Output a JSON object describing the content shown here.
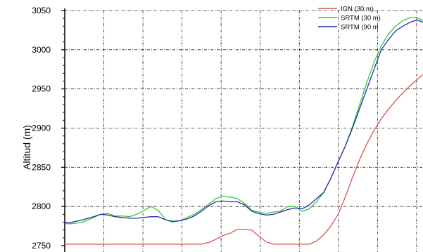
{
  "chart_data": {
    "type": "line",
    "title": "",
    "xlabel": "",
    "ylabel": "Altitud (m)",
    "ylim": [
      2750,
      3050
    ],
    "yticks": [
      2750,
      2800,
      2850,
      2900,
      2950,
      3000,
      3050
    ],
    "grid": true,
    "legend_position": "top-right",
    "series": [
      {
        "name": "IGN (30 m)",
        "color": "#d9534f",
        "points": [
          [
            0,
            2752
          ],
          [
            2,
            2752
          ],
          [
            5,
            2752
          ],
          [
            10,
            2752
          ],
          [
            15,
            2752
          ],
          [
            20,
            2752
          ],
          [
            25,
            2752
          ],
          [
            30,
            2752
          ],
          [
            35,
            2752
          ],
          [
            38,
            2752
          ],
          [
            40,
            2754
          ],
          [
            42,
            2758
          ],
          [
            44,
            2763
          ],
          [
            46,
            2766
          ],
          [
            48,
            2771
          ],
          [
            50,
            2771
          ],
          [
            52,
            2770
          ],
          [
            54,
            2762
          ],
          [
            56,
            2755
          ],
          [
            58,
            2752
          ],
          [
            60,
            2752
          ],
          [
            62,
            2752
          ],
          [
            65,
            2752
          ],
          [
            68,
            2752
          ],
          [
            70,
            2756
          ],
          [
            72,
            2764
          ],
          [
            74,
            2775
          ],
          [
            76,
            2790
          ],
          [
            78,
            2812
          ],
          [
            80,
            2837
          ],
          [
            82,
            2860
          ],
          [
            84,
            2880
          ],
          [
            86,
            2897
          ],
          [
            88,
            2912
          ],
          [
            90,
            2924
          ],
          [
            92,
            2935
          ],
          [
            94,
            2945
          ],
          [
            96,
            2954
          ],
          [
            98,
            2962
          ],
          [
            100,
            2970
          ]
        ]
      },
      {
        "name": "SRTM (30 m)",
        "color": "#33cc33",
        "points": [
          [
            0,
            2778
          ],
          [
            2,
            2778
          ],
          [
            5,
            2780
          ],
          [
            8,
            2786
          ],
          [
            10,
            2790
          ],
          [
            12,
            2791
          ],
          [
            14,
            2788
          ],
          [
            16,
            2788
          ],
          [
            18,
            2787
          ],
          [
            20,
            2790
          ],
          [
            22,
            2795
          ],
          [
            24,
            2800
          ],
          [
            26,
            2795
          ],
          [
            28,
            2783
          ],
          [
            30,
            2780
          ],
          [
            32,
            2782
          ],
          [
            34,
            2786
          ],
          [
            36,
            2790
          ],
          [
            38,
            2796
          ],
          [
            40,
            2803
          ],
          [
            42,
            2810
          ],
          [
            44,
            2813
          ],
          [
            46,
            2812
          ],
          [
            48,
            2810
          ],
          [
            50,
            2804
          ],
          [
            52,
            2795
          ],
          [
            54,
            2793
          ],
          [
            56,
            2791
          ],
          [
            58,
            2793
          ],
          [
            60,
            2794
          ],
          [
            62,
            2800
          ],
          [
            64,
            2800
          ],
          [
            66,
            2794
          ],
          [
            68,
            2797
          ],
          [
            70,
            2806
          ],
          [
            72,
            2818
          ],
          [
            74,
            2836
          ],
          [
            76,
            2857
          ],
          [
            78,
            2877
          ],
          [
            80,
            2902
          ],
          [
            82,
            2930
          ],
          [
            84,
            2958
          ],
          [
            86,
            2984
          ],
          [
            88,
            3005
          ],
          [
            90,
            3020
          ],
          [
            92,
            3030
          ],
          [
            94,
            3037
          ],
          [
            96,
            3041
          ],
          [
            98,
            3041
          ],
          [
            100,
            3036
          ]
        ]
      },
      {
        "name": "SRTM (90 m",
        "color": "#2a2ab0",
        "points": [
          [
            0,
            2779
          ],
          [
            2,
            2780
          ],
          [
            5,
            2783
          ],
          [
            8,
            2787
          ],
          [
            10,
            2790
          ],
          [
            12,
            2789
          ],
          [
            14,
            2787
          ],
          [
            16,
            2786
          ],
          [
            18,
            2785
          ],
          [
            20,
            2785
          ],
          [
            22,
            2786
          ],
          [
            24,
            2787
          ],
          [
            26,
            2787
          ],
          [
            28,
            2783
          ],
          [
            30,
            2781
          ],
          [
            32,
            2782
          ],
          [
            34,
            2784
          ],
          [
            36,
            2788
          ],
          [
            38,
            2794
          ],
          [
            40,
            2801
          ],
          [
            42,
            2806
          ],
          [
            44,
            2807
          ],
          [
            46,
            2806
          ],
          [
            48,
            2806
          ],
          [
            50,
            2802
          ],
          [
            52,
            2794
          ],
          [
            54,
            2791
          ],
          [
            56,
            2789
          ],
          [
            58,
            2790
          ],
          [
            60,
            2793
          ],
          [
            62,
            2796
          ],
          [
            64,
            2798
          ],
          [
            66,
            2797
          ],
          [
            68,
            2802
          ],
          [
            70,
            2810
          ],
          [
            72,
            2818
          ],
          [
            74,
            2836
          ],
          [
            76,
            2857
          ],
          [
            78,
            2877
          ],
          [
            80,
            2900
          ],
          [
            82,
            2925
          ],
          [
            84,
            2950
          ],
          [
            86,
            2975
          ],
          [
            88,
            3000
          ],
          [
            90,
            3013
          ],
          [
            92,
            3024
          ],
          [
            94,
            3030
          ],
          [
            96,
            3035
          ],
          [
            98,
            3038
          ],
          [
            100,
            3034
          ]
        ]
      }
    ]
  }
}
